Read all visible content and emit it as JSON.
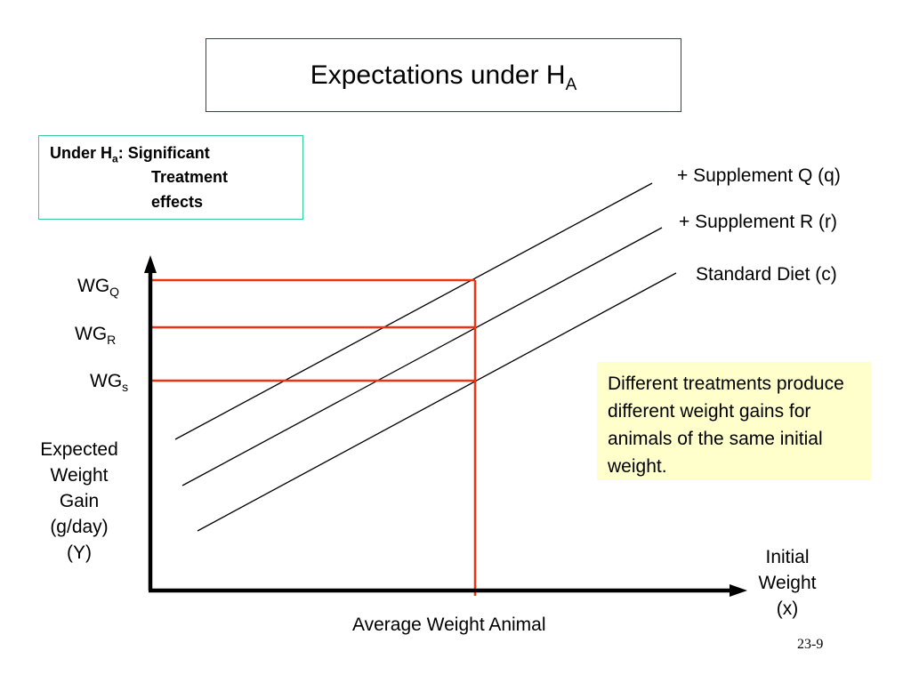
{
  "title": {
    "main": "Expectations under H",
    "sub": "A"
  },
  "hypothesis_box": {
    "prefix": "Under H",
    "sub": "a",
    "line1_rest": ": Significant",
    "line2": "Treatment",
    "line3": "effects"
  },
  "lines": {
    "q": "+ Supplement Q (q)",
    "r": "+ Supplement R (r)",
    "c": "Standard Diet (c)"
  },
  "wg_labels": {
    "q": {
      "main": "WG",
      "sub": "Q"
    },
    "r": {
      "main": "WG",
      "sub": "R"
    },
    "s": {
      "main": "WG",
      "sub": "s"
    }
  },
  "y_axis_label": [
    "Expected",
    "Weight",
    "Gain",
    "(g/day)",
    "(Y)"
  ],
  "x_axis_label": [
    "Initial",
    "Weight",
    "(x)"
  ],
  "x_reference_label": "Average Weight Animal",
  "note": "Different treatments produce different weight gains for animals of the same initial weight.",
  "slide_number": "23-9",
  "colors": {
    "reference_lines": "#ee3311",
    "title_border": "#3333aa",
    "hypothesis_border": "#33cc99",
    "note_bg": "#ffffcc"
  }
}
